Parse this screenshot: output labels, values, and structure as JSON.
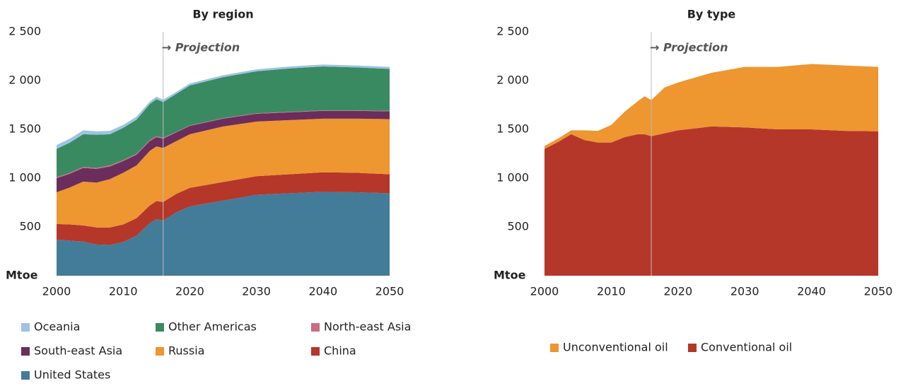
{
  "chart_data": [
    {
      "type": "area",
      "stacked": true,
      "grid": false,
      "title": "By region",
      "y_label": "Mtoe",
      "annotation": {
        "text": "→ Projection",
        "x": 2016
      },
      "x": [
        2000,
        2002,
        2004,
        2006,
        2008,
        2010,
        2012,
        2014,
        2015,
        2016,
        2018,
        2020,
        2025,
        2030,
        2035,
        2040,
        2045,
        2050
      ],
      "xlim": [
        2000,
        2050
      ],
      "xticks": [
        2000,
        2010,
        2020,
        2030,
        2040,
        2050
      ],
      "ylim": [
        0,
        2500
      ],
      "yticks": [
        {
          "value": 500,
          "label": "500"
        },
        {
          "value": 1000,
          "label": "1 000"
        },
        {
          "value": 1500,
          "label": "1 500"
        },
        {
          "value": 2000,
          "label": "2 000"
        },
        {
          "value": 2500,
          "label": "2 500"
        }
      ],
      "series": [
        {
          "name": "Oceania",
          "color": "#9dc3e6",
          "values": [
            40,
            40,
            40,
            35,
            35,
            30,
            30,
            25,
            25,
            25,
            20,
            20,
            20,
            20,
            20,
            20,
            20,
            20
          ]
        },
        {
          "name": "Other Americas",
          "color": "#3a8a61",
          "values": [
            290,
            310,
            335,
            340,
            320,
            330,
            350,
            370,
            380,
            365,
            390,
            410,
            420,
            430,
            445,
            450,
            440,
            430
          ]
        },
        {
          "name": "North-east Asia",
          "color": "#c96c84",
          "values": [
            10,
            10,
            10,
            10,
            10,
            10,
            10,
            10,
            10,
            10,
            5,
            5,
            5,
            5,
            5,
            5,
            5,
            5
          ]
        },
        {
          "name": "South-east Asia",
          "color": "#6b2d5c",
          "values": [
            145,
            140,
            140,
            140,
            130,
            120,
            110,
            100,
            95,
            95,
            90,
            85,
            80,
            80,
            80,
            80,
            80,
            80
          ]
        },
        {
          "name": "Russia",
          "color": "#ee9630",
          "values": [
            325,
            380,
            450,
            460,
            495,
            530,
            540,
            560,
            560,
            555,
            540,
            550,
            570,
            560,
            555,
            550,
            555,
            565
          ]
        },
        {
          "name": "China",
          "color": "#b5372a",
          "values": [
            160,
            165,
            165,
            175,
            180,
            180,
            180,
            180,
            185,
            190,
            190,
            190,
            190,
            190,
            195,
            200,
            200,
            195
          ]
        },
        {
          "name": "United States",
          "color": "#427c98",
          "values": [
            370,
            360,
            350,
            320,
            315,
            345,
            410,
            540,
            580,
            565,
            650,
            710,
            770,
            830,
            845,
            860,
            855,
            845
          ]
        }
      ]
    },
    {
      "type": "area",
      "stacked": true,
      "grid": false,
      "title": "By type",
      "y_label": "Mtoe",
      "annotation": {
        "text": "→ Projection",
        "x": 2016
      },
      "x": [
        2000,
        2002,
        2004,
        2006,
        2008,
        2010,
        2012,
        2014,
        2015,
        2016,
        2018,
        2020,
        2025,
        2030,
        2035,
        2040,
        2045,
        2050
      ],
      "xlim": [
        2000,
        2050
      ],
      "xticks": [
        2000,
        2010,
        2020,
        2030,
        2040,
        2050
      ],
      "ylim": [
        0,
        2500
      ],
      "yticks": [
        {
          "value": 500,
          "label": "500"
        },
        {
          "value": 1000,
          "label": "1 000"
        },
        {
          "value": 1500,
          "label": "1 500"
        },
        {
          "value": 2000,
          "label": "2 000"
        },
        {
          "value": 2500,
          "label": "2 500"
        }
      ],
      "series": [
        {
          "name": "Unconventional oil",
          "color": "#ee9630",
          "values": [
            30,
            35,
            40,
            100,
            120,
            180,
            260,
            340,
            390,
            370,
            470,
            490,
            550,
            620,
            640,
            670,
            670,
            660
          ]
        },
        {
          "name": "Conventional oil",
          "color": "#b5372a",
          "values": [
            1300,
            1370,
            1450,
            1390,
            1365,
            1365,
            1420,
            1450,
            1450,
            1430,
            1460,
            1490,
            1530,
            1520,
            1500,
            1500,
            1485,
            1480
          ]
        }
      ]
    }
  ]
}
